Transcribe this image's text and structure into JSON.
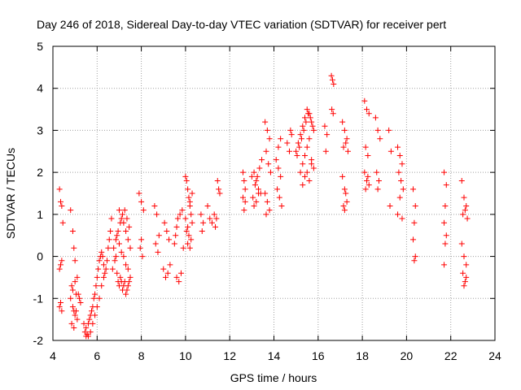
{
  "chart_data": {
    "type": "scatter",
    "title": "Day 246 of 2018, Sidereal Day-to-day VTEC variation (SDTVAR) for receiver pert",
    "xlabel": "GPS time / hours",
    "ylabel": "SDTVAR / TECUs",
    "xlim": [
      4,
      24
    ],
    "ylim": [
      -2,
      5
    ],
    "xticks": [
      "4",
      "6",
      "8",
      "10",
      "12",
      "14",
      "16",
      "18",
      "20",
      "22",
      "24"
    ],
    "yticks": [
      "-2",
      "-1",
      "0",
      "1",
      "2",
      "3",
      "4",
      "5"
    ],
    "grid": true,
    "marker": "+",
    "color": "#ff0000",
    "series": [
      {
        "name": "SDTVAR",
        "x": [
          4.3,
          4.35,
          4.4,
          4.45,
          4.3,
          4.35,
          4.4,
          4.3,
          4.4,
          4.35,
          4.8,
          4.9,
          4.95,
          5.0,
          4.85,
          5.05,
          4.8,
          4.9,
          5.0,
          5.1,
          4.85,
          4.95,
          5.05,
          5.15,
          4.9,
          5.0,
          5.1,
          5.2,
          5.25,
          4.95,
          5.4,
          5.45,
          5.5,
          5.55,
          5.5,
          5.6,
          5.65,
          5.7,
          5.75,
          5.8,
          5.85,
          5.9,
          5.95,
          6.0,
          6.05,
          6.1,
          6.15,
          6.2,
          6.25,
          6.3,
          6.35,
          6.4,
          6.45,
          6.5,
          6.55,
          6.6,
          6.65,
          5.6,
          5.7,
          5.8,
          5.9,
          6.0,
          6.1,
          6.2,
          6.3,
          6.7,
          6.8,
          6.85,
          6.9,
          6.95,
          7.0,
          7.05,
          7.1,
          7.15,
          7.2,
          7.25,
          7.3,
          7.35,
          7.4,
          7.45,
          7.5,
          6.75,
          6.85,
          6.95,
          7.05,
          7.15,
          7.25,
          7.35,
          7.45,
          6.9,
          7.0,
          7.1,
          7.2,
          7.3,
          7.4,
          7.0,
          7.1,
          7.2,
          7.3,
          7.4,
          7.5,
          7.9,
          8.0,
          8.1,
          8.0,
          7.95,
          8.05,
          8.6,
          8.7,
          8.8,
          8.65,
          8.75,
          9.0,
          9.1,
          9.2,
          9.3,
          9.05,
          9.15,
          9.25,
          9.6,
          9.7,
          9.8,
          9.9,
          9.65,
          9.75,
          9.85,
          9.5,
          9.55,
          9.6,
          10.0,
          10.05,
          10.1,
          10.15,
          10.2,
          10.25,
          10.3,
          10.05,
          10.15,
          10.25,
          10.1,
          10.2,
          10.0,
          10.1,
          10.2,
          10.3,
          10.7,
          10.8,
          10.75,
          11.0,
          11.1,
          11.2,
          11.3,
          11.4,
          11.5,
          11.45,
          11.55,
          11.35,
          12.6,
          12.65,
          12.7,
          12.6,
          12.7,
          12.65,
          13.0,
          13.1,
          13.2,
          13.3,
          13.4,
          13.05,
          13.15,
          13.25,
          13.35,
          13.45,
          13.1,
          13.2,
          13.3,
          13.6,
          13.7,
          13.8,
          13.65,
          13.75,
          13.85,
          13.6,
          13.7,
          13.8,
          13.65,
          14.1,
          14.2,
          14.3,
          14.15,
          14.25,
          14.35,
          14.2,
          14.3,
          14.6,
          14.7,
          14.8,
          14.75,
          15.0,
          15.1,
          15.2,
          15.3,
          15.4,
          15.5,
          15.6,
          15.7,
          15.8,
          15.05,
          15.15,
          15.25,
          15.35,
          15.45,
          15.55,
          15.65,
          15.75,
          15.2,
          15.3,
          15.4,
          15.5,
          15.6,
          15.7,
          15.8,
          15.3,
          15.4,
          15.5,
          15.6,
          15.7,
          16.3,
          16.4,
          16.35,
          16.6,
          16.65,
          16.7,
          16.62,
          16.68,
          17.1,
          17.2,
          17.3,
          17.15,
          17.25,
          17.35,
          17.1,
          17.2,
          17.3,
          17.15,
          17.25,
          17.2,
          18.1,
          18.2,
          18.3,
          18.15,
          18.25,
          18.1,
          18.2,
          18.3,
          18.15,
          18.25,
          18.6,
          18.7,
          18.8,
          18.65,
          18.75,
          18.7,
          19.2,
          19.3,
          19.25,
          19.6,
          19.7,
          19.8,
          19.65,
          19.75,
          19.85,
          19.7,
          19.6,
          19.8,
          20.3,
          20.4,
          20.35,
          20.3,
          20.4,
          20.35,
          21.7,
          21.8,
          21.75,
          21.7,
          21.8,
          21.75,
          21.7,
          22.5,
          22.6,
          22.7,
          22.55,
          22.65,
          22.75,
          22.5,
          22.6,
          22.7,
          22.55,
          22.65,
          22.6,
          22.7
        ],
        "y": [
          1.6,
          1.3,
          1.2,
          0.8,
          -0.3,
          -0.2,
          -0.1,
          -1.2,
          -1.3,
          -1.1,
          1.1,
          0.6,
          0.2,
          -0.1,
          -0.7,
          -0.9,
          -1.0,
          -1.2,
          -1.4,
          -1.5,
          -1.6,
          -1.7,
          -1.3,
          -0.9,
          -0.8,
          -0.6,
          -0.5,
          -1.0,
          -1.1,
          -1.3,
          -1.6,
          -1.8,
          -1.9,
          -1.85,
          -1.7,
          -1.6,
          -1.5,
          -1.4,
          -1.3,
          -1.2,
          -1.0,
          -0.9,
          -0.7,
          -0.5,
          -0.3,
          -0.1,
          0.0,
          0.1,
          0.0,
          -0.2,
          -0.4,
          -0.3,
          -0.1,
          0.2,
          0.4,
          0.6,
          0.9,
          -1.9,
          -1.8,
          -1.6,
          -1.4,
          -1.2,
          -1.0,
          -0.7,
          -0.5,
          -0.3,
          -0.1,
          0.0,
          -0.4,
          -0.6,
          -0.7,
          -0.5,
          -0.6,
          -0.8,
          -0.7,
          -0.6,
          -0.9,
          -0.8,
          -0.7,
          -0.6,
          -0.5,
          0.2,
          0.4,
          0.6,
          0.8,
          1.0,
          1.1,
          0.9,
          0.7,
          0.5,
          0.3,
          0.1,
          0.0,
          -0.2,
          -0.3,
          1.1,
          0.9,
          0.8,
          0.6,
          0.4,
          0.2,
          1.5,
          1.3,
          1.1,
          0.4,
          0.2,
          0.0,
          1.2,
          1.0,
          0.5,
          0.3,
          0.1,
          -0.3,
          -0.5,
          -0.4,
          -0.2,
          0.8,
          0.6,
          0.4,
          -0.5,
          -0.6,
          -0.4,
          0.2,
          0.9,
          1.0,
          1.1,
          0.3,
          0.5,
          0.7,
          1.9,
          1.8,
          1.6,
          1.4,
          1.2,
          1.0,
          0.8,
          0.6,
          0.5,
          0.4,
          0.3,
          0.2,
          0.9,
          0.7,
          1.3,
          1.5,
          1.0,
          0.8,
          0.6,
          1.2,
          0.9,
          0.8,
          1.0,
          0.9,
          1.6,
          1.8,
          1.5,
          0.7,
          2.0,
          1.8,
          1.6,
          1.4,
          1.3,
          1.1,
          1.9,
          2.0,
          1.8,
          1.6,
          1.5,
          1.4,
          1.7,
          1.9,
          2.1,
          2.3,
          1.2,
          1.3,
          1.5,
          3.2,
          3.0,
          2.8,
          2.5,
          2.2,
          2.0,
          1.5,
          1.3,
          1.1,
          1.0,
          2.3,
          2.1,
          1.9,
          1.6,
          1.4,
          1.2,
          2.6,
          2.8,
          2.7,
          2.5,
          2.9,
          3.0,
          2.5,
          2.7,
          2.9,
          3.1,
          3.3,
          3.5,
          3.4,
          3.2,
          3.0,
          2.4,
          2.6,
          2.8,
          3.0,
          3.2,
          3.4,
          3.3,
          3.1,
          2.0,
          2.2,
          2.4,
          2.6,
          2.8,
          2.3,
          2.1,
          1.7,
          1.9,
          2.0,
          1.8,
          2.2,
          3.1,
          2.9,
          2.5,
          4.3,
          4.2,
          4.1,
          3.5,
          3.4,
          3.2,
          3.0,
          2.8,
          2.6,
          2.7,
          2.5,
          1.9,
          1.6,
          1.3,
          1.2,
          1.5,
          1.1,
          3.7,
          3.5,
          3.4,
          2.6,
          2.4,
          2.0,
          1.8,
          1.7,
          1.6,
          1.9,
          3.3,
          3.0,
          2.8,
          2.0,
          1.8,
          1.6,
          3.0,
          2.5,
          1.2,
          2.6,
          2.4,
          2.2,
          2.0,
          1.8,
          1.6,
          1.4,
          1.0,
          0.9,
          1.6,
          1.2,
          0.8,
          0.4,
          0.0,
          -0.1,
          2.0,
          1.7,
          1.2,
          0.8,
          0.5,
          0.3,
          -0.2,
          1.8,
          1.4,
          1.2,
          1.0,
          1.1,
          0.9,
          0.3,
          0.0,
          -0.2,
          -0.4,
          -0.6,
          -0.7,
          -0.5
        ]
      }
    ]
  }
}
